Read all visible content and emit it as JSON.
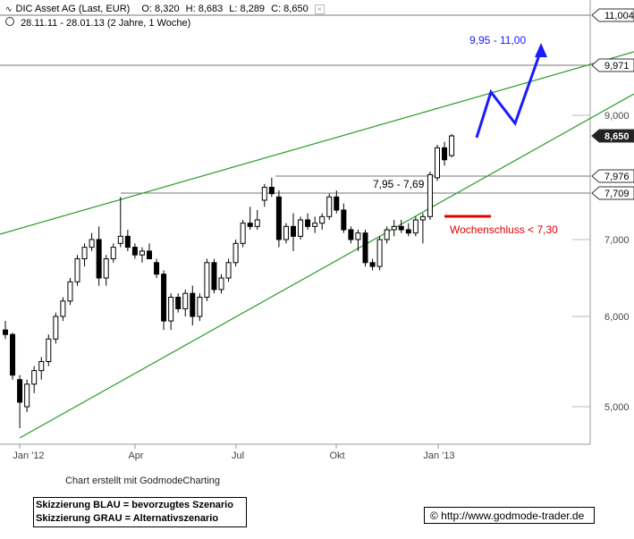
{
  "header": {
    "title": "DIC Asset AG (Last, EUR)",
    "open": "O: 8,320",
    "high": "H: 8,683",
    "low": "L: 8,289",
    "close": "C: 8,650",
    "range": "28.11.11 - 28.01.13 (2 Jahre, 1 Woche)"
  },
  "chart_data": {
    "type": "candlestick",
    "y_range": [
      4.5,
      11.2
    ],
    "x_labels": [
      "Jan '12",
      "Apr",
      "Jul",
      "Okt",
      "Jan '13"
    ],
    "y_ticks": [
      5.0,
      6.0,
      7.0,
      9.0
    ],
    "y_tick_labels": [
      "5,000",
      "6,000",
      "7,000",
      "9,000"
    ],
    "price_tags": [
      {
        "label": "11,004",
        "value": 11.004,
        "highlight": false
      },
      {
        "label": "9,971",
        "value": 9.971,
        "highlight": false
      },
      {
        "label": "8,650",
        "value": 8.65,
        "highlight": true
      },
      {
        "label": "7,976",
        "value": 7.976,
        "highlight": false
      },
      {
        "label": "7,709",
        "value": 7.709,
        "highlight": false
      }
    ],
    "candles": [
      [
        0,
        5.85,
        5.95,
        5.75,
        5.8
      ],
      [
        1,
        5.8,
        5.82,
        5.3,
        5.35
      ],
      [
        2,
        5.3,
        5.35,
        4.8,
        5.05
      ],
      [
        3,
        5.0,
        5.3,
        4.95,
        5.25
      ],
      [
        4,
        5.25,
        5.45,
        5.15,
        5.4
      ],
      [
        5,
        5.4,
        5.55,
        5.3,
        5.5
      ],
      [
        6,
        5.5,
        5.8,
        5.45,
        5.75
      ],
      [
        7,
        5.75,
        6.05,
        5.7,
        6.0
      ],
      [
        8,
        6.0,
        6.25,
        5.95,
        6.2
      ],
      [
        9,
        6.2,
        6.5,
        6.15,
        6.45
      ],
      [
        10,
        6.45,
        6.8,
        6.4,
        6.75
      ],
      [
        11,
        6.75,
        6.95,
        6.65,
        6.9
      ],
      [
        12,
        6.9,
        7.1,
        6.85,
        7.0
      ],
      [
        13,
        7.0,
        7.2,
        6.4,
        6.5
      ],
      [
        14,
        6.5,
        6.8,
        6.4,
        6.75
      ],
      [
        15,
        6.75,
        6.95,
        6.7,
        6.9
      ],
      [
        16,
        6.95,
        7.65,
        6.9,
        7.05
      ],
      [
        17,
        7.05,
        7.15,
        6.85,
        6.9
      ],
      [
        18,
        6.9,
        6.95,
        6.75,
        6.8
      ],
      [
        19,
        6.8,
        6.9,
        6.7,
        6.85
      ],
      [
        20,
        6.85,
        6.95,
        6.75,
        6.75
      ],
      [
        21,
        6.7,
        6.75,
        6.5,
        6.55
      ],
      [
        22,
        6.55,
        6.6,
        5.85,
        5.95
      ],
      [
        23,
        5.95,
        6.3,
        5.85,
        6.25
      ],
      [
        24,
        6.25,
        6.3,
        6.05,
        6.1
      ],
      [
        25,
        6.1,
        6.35,
        6.0,
        6.3
      ],
      [
        26,
        6.3,
        6.4,
        5.9,
        6.0
      ],
      [
        27,
        6.0,
        6.3,
        5.95,
        6.25
      ],
      [
        28,
        6.25,
        6.75,
        6.2,
        6.7
      ],
      [
        29,
        6.7,
        6.75,
        6.3,
        6.35
      ],
      [
        30,
        6.35,
        6.55,
        6.3,
        6.5
      ],
      [
        31,
        6.5,
        6.75,
        6.45,
        6.7
      ],
      [
        32,
        6.7,
        7.0,
        6.65,
        6.95
      ],
      [
        33,
        6.95,
        7.3,
        6.9,
        7.25
      ],
      [
        34,
        7.25,
        7.5,
        7.15,
        7.2
      ],
      [
        35,
        7.2,
        7.45,
        7.15,
        7.3
      ],
      [
        36,
        7.6,
        7.85,
        7.5,
        7.8
      ],
      [
        37,
        7.8,
        7.95,
        7.65,
        7.7
      ],
      [
        38,
        7.65,
        7.75,
        6.9,
        7.0
      ],
      [
        39,
        7.0,
        7.25,
        6.95,
        7.2
      ],
      [
        40,
        7.2,
        7.4,
        6.85,
        7.05
      ],
      [
        41,
        7.05,
        7.35,
        7.0,
        7.3
      ],
      [
        42,
        7.3,
        7.4,
        7.15,
        7.2
      ],
      [
        43,
        7.2,
        7.35,
        7.1,
        7.25
      ],
      [
        44,
        7.25,
        7.4,
        7.15,
        7.35
      ],
      [
        45,
        7.35,
        7.7,
        7.3,
        7.65
      ],
      [
        46,
        7.65,
        7.75,
        7.4,
        7.45
      ],
      [
        47,
        7.45,
        7.55,
        7.1,
        7.15
      ],
      [
        48,
        7.15,
        7.2,
        6.95,
        7.0
      ],
      [
        49,
        7.0,
        7.15,
        6.85,
        7.1
      ],
      [
        50,
        7.1,
        7.15,
        6.65,
        6.7
      ],
      [
        51,
        6.7,
        6.75,
        6.6,
        6.65
      ],
      [
        52,
        6.65,
        7.05,
        6.6,
        7.0
      ],
      [
        53,
        7.0,
        7.2,
        6.95,
        7.15
      ],
      [
        54,
        7.15,
        7.3,
        7.05,
        7.2
      ],
      [
        55,
        7.2,
        7.3,
        7.1,
        7.15
      ],
      [
        56,
        7.15,
        7.25,
        7.05,
        7.1
      ],
      [
        57,
        7.1,
        7.35,
        7.05,
        7.3
      ],
      [
        58,
        7.3,
        7.4,
        6.95,
        7.35
      ],
      [
        59,
        7.35,
        8.05,
        7.3,
        8.0
      ],
      [
        60,
        7.95,
        8.5,
        7.9,
        8.45
      ],
      [
        61,
        8.45,
        8.55,
        8.15,
        8.25
      ],
      [
        62,
        8.32,
        8.683,
        8.289,
        8.65
      ]
    ],
    "trendlines": [
      "upper green channel",
      "lower green channel"
    ],
    "annotations": [
      {
        "text": "9,95 - 11,00",
        "color": "#1a1aff"
      },
      {
        "text": "7,95 - 7,69",
        "color": "#000000"
      },
      {
        "text": "Wochenschluss < 7,30",
        "color": "#e00000"
      }
    ]
  },
  "footer": {
    "credit": "Chart erstellt mit GodmodeCharting",
    "note_blue": "Skizzierung BLAU = bevorzugtes Szenario",
    "note_grey": "Skizzierung GRAU = Alternativszenario",
    "copyright": "© http://www.godmode-trader.de"
  }
}
